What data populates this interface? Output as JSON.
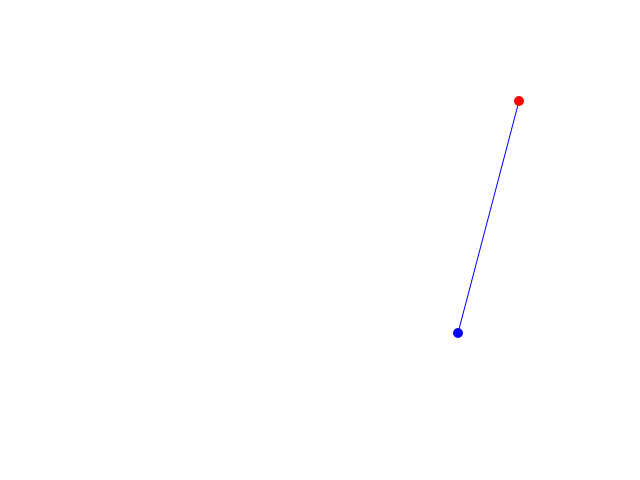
{
  "canvas": {
    "background": "#ffffff",
    "segment": {
      "color": "#0000ff",
      "start_point": {
        "color": "#0000ff",
        "icon": "circle"
      },
      "end_point": {
        "color": "#ff0000",
        "icon": "circle"
      }
    }
  }
}
